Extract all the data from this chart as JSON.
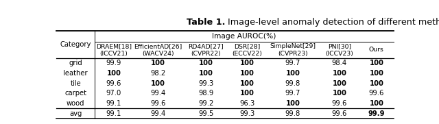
{
  "title_bold": "Table 1.",
  "title_normal": " Image-level anomaly detection of different method",
  "header_main": "Image AUROC(%)",
  "col_headers": [
    "Category",
    "DRAEM[18]\n(ICCV21)",
    "EfficientAD[26]\n(WACV24)",
    "RD4AD[27]\n(CVPR22)",
    "DSR[28]\n(ECCV22)",
    "SimpleNet[29]\n(CVPR23)",
    "PNI[30]\n(ICCV23)",
    "Ours"
  ],
  "rows": [
    [
      "grid",
      "99.9",
      "100",
      "100",
      "100",
      "99.7",
      "98.4",
      "100"
    ],
    [
      "leather",
      "100",
      "98.2",
      "100",
      "100",
      "100",
      "100",
      "100"
    ],
    [
      "tile",
      "99.6",
      "100",
      "99.3",
      "100",
      "99.8",
      "100",
      "100"
    ],
    [
      "carpet",
      "97.0",
      "99.4",
      "98.9",
      "100",
      "99.7",
      "100",
      "99.6"
    ],
    [
      "wood",
      "99.1",
      "99.6",
      "99.2",
      "96.3",
      "100",
      "99.6",
      "100"
    ]
  ],
  "avg_row": [
    "avg",
    "99.1",
    "99.4",
    "99.5",
    "99.3",
    "99.8",
    "99.6",
    "99.9"
  ],
  "bold_cells": {
    "0": [
      2,
      3,
      4,
      7
    ],
    "1": [
      1,
      3,
      4,
      5,
      6,
      7
    ],
    "2": [
      2,
      4,
      6,
      7
    ],
    "3": [
      4,
      6
    ],
    "4": [
      5,
      7
    ],
    "avg": [
      7
    ]
  },
  "background": "#ffffff",
  "font_size": 7.2,
  "header_font_size": 7.2,
  "title_font_size": 9.2
}
